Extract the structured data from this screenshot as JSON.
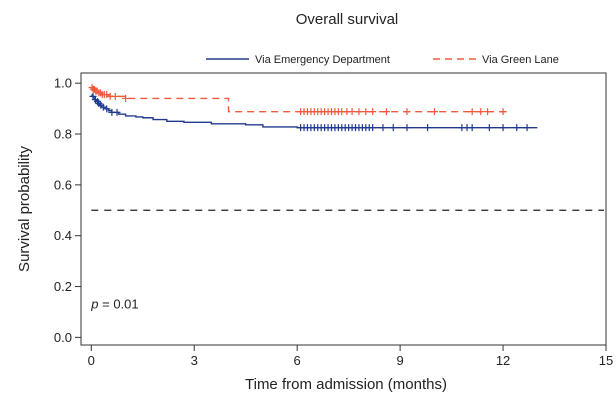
{
  "chart_data": {
    "type": "line",
    "title": "Overall survival",
    "xlabel": "Time from admission (months)",
    "ylabel": "Survival probability",
    "xlim": [
      -0.3,
      15
    ],
    "ylim": [
      -0.03,
      1.04
    ],
    "xticks": [
      0,
      3,
      6,
      9,
      12,
      15
    ],
    "yticks": [
      0.0,
      0.2,
      0.4,
      0.6,
      0.8,
      1.0
    ],
    "xtick_labels": [
      "0",
      "3",
      "6",
      "9",
      "12",
      "15"
    ],
    "ytick_labels": [
      "0.0",
      "0.2",
      "0.4",
      "0.6",
      "0.8",
      "1.0"
    ],
    "legend_position": "top",
    "reference_line": {
      "y": 0.5,
      "style": "dashed",
      "color": "#222222"
    },
    "annotation": {
      "italic": "p",
      "rest": " = 0.01",
      "x": 0,
      "y": 0.13
    },
    "series": [
      {
        "name": "Via Emergency Department",
        "color": "#1f3b8f",
        "dash": "solid",
        "step_x": [
          0,
          0.03,
          0.06,
          0.1,
          0.15,
          0.2,
          0.25,
          0.3,
          0.4,
          0.5,
          0.6,
          0.8,
          1.0,
          1.3,
          1.5,
          1.8,
          2.2,
          2.7,
          3.5,
          4.5,
          5.0,
          6.0,
          13.0
        ],
        "step_y": [
          0.953,
          0.948,
          0.942,
          0.935,
          0.928,
          0.92,
          0.913,
          0.906,
          0.899,
          0.892,
          0.885,
          0.878,
          0.871,
          0.867,
          0.864,
          0.857,
          0.85,
          0.846,
          0.84,
          0.836,
          0.828,
          0.825,
          0.825
        ],
        "censor_x": [
          0.05,
          0.12,
          0.18,
          0.22,
          0.28,
          0.35,
          0.45,
          0.6,
          0.75,
          6.1,
          6.2,
          6.3,
          6.4,
          6.5,
          6.6,
          6.7,
          6.8,
          6.9,
          7.0,
          7.1,
          7.2,
          7.3,
          7.4,
          7.5,
          7.6,
          7.7,
          7.8,
          7.9,
          8.0,
          8.1,
          8.2,
          8.5,
          8.8,
          9.2,
          9.8,
          10.8,
          10.95,
          11.1,
          11.6,
          12.0,
          12.4,
          12.7
        ]
      },
      {
        "name": "Via Green Lane",
        "color": "#ee5a3c",
        "dash": "dashed",
        "step_x": [
          0,
          0.05,
          0.1,
          0.2,
          0.3,
          0.5,
          1.0,
          4.0,
          12.2
        ],
        "step_y": [
          0.983,
          0.976,
          0.969,
          0.962,
          0.955,
          0.948,
          0.94,
          0.888,
          0.888
        ],
        "censor_x": [
          0.02,
          0.06,
          0.09,
          0.13,
          0.17,
          0.22,
          0.27,
          0.32,
          0.38,
          0.45,
          0.55,
          0.7,
          1.0,
          6.1,
          6.2,
          6.3,
          6.4,
          6.5,
          6.6,
          6.7,
          6.8,
          6.9,
          7.0,
          7.1,
          7.2,
          7.3,
          7.45,
          7.6,
          7.8,
          8.0,
          8.2,
          8.6,
          9.2,
          10.0,
          11.1,
          11.35,
          11.55,
          12.0
        ]
      }
    ]
  }
}
